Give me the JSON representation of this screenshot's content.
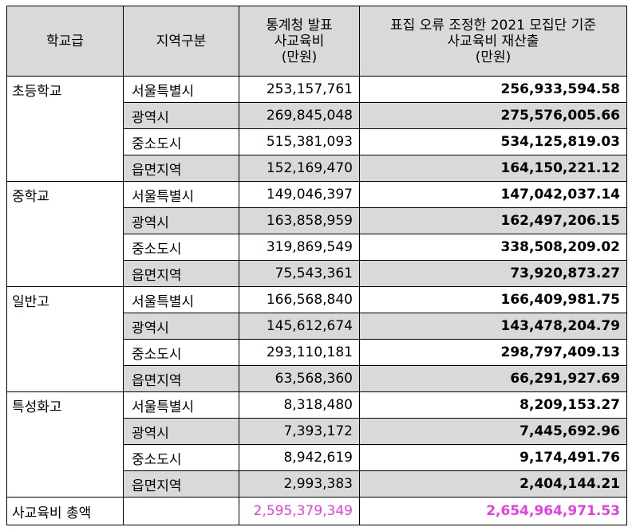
{
  "header": {
    "col1": "학교급",
    "col2": "지역구분",
    "col3_lines": [
      "통계청 발표",
      "사교육비",
      "(만원)"
    ],
    "col4_lines": [
      "표집 오류 조정한 2021 모집단 기준",
      "사교육비 재산출",
      "(만원)"
    ]
  },
  "groups": [
    {
      "name": "초등학교",
      "rows": [
        {
          "region": "서울특별시",
          "official": "253,157,761",
          "recalc": "256,933,594.58"
        },
        {
          "region": "광역시",
          "official": "269,845,048",
          "recalc": "275,576,005.66"
        },
        {
          "region": "중소도시",
          "official": "515,381,093",
          "recalc": "534,125,819.03"
        },
        {
          "region": "읍면지역",
          "official": "152,169,470",
          "recalc": "164,150,221.12"
        }
      ]
    },
    {
      "name": "중학교",
      "rows": [
        {
          "region": "서울특별시",
          "official": "149,046,397",
          "recalc": "147,042,037.14"
        },
        {
          "region": "광역시",
          "official": "163,858,959",
          "recalc": "162,497,206.15"
        },
        {
          "region": "중소도시",
          "official": "319,869,549",
          "recalc": "338,508,209.02"
        },
        {
          "region": "읍면지역",
          "official": "75,543,361",
          "recalc": "73,920,873.27"
        }
      ]
    },
    {
      "name": "일반고",
      "rows": [
        {
          "region": "서울특별시",
          "official": "166,568,840",
          "recalc": "166,409,981.75"
        },
        {
          "region": "광역시",
          "official": "145,612,674",
          "recalc": "143,478,204.79"
        },
        {
          "region": "중소도시",
          "official": "293,110,181",
          "recalc": "298,797,409.13"
        },
        {
          "region": "읍면지역",
          "official": "63,568,360",
          "recalc": "66,291,927.69"
        }
      ]
    },
    {
      "name": "특성화고",
      "rows": [
        {
          "region": "서울특별시",
          "official": "8,318,480",
          "recalc": "8,209,153.27"
        },
        {
          "region": "광역시",
          "official": "7,393,172",
          "recalc": "7,445,692.96"
        },
        {
          "region": "중소도시",
          "official": "8,942,619",
          "recalc": "9,174,491.76"
        },
        {
          "region": "읍면지역",
          "official": "2,993,383",
          "recalc": "2,404,144.21"
        }
      ]
    }
  ],
  "total": {
    "label": "사교육비 총액",
    "official": "2,595,379,349",
    "recalc": "2,654,964,971.53",
    "highlight_color": "#e83ee0"
  },
  "colors": {
    "header_bg": "#d9d9d9",
    "shade_bg": "#d9d9d9"
  }
}
